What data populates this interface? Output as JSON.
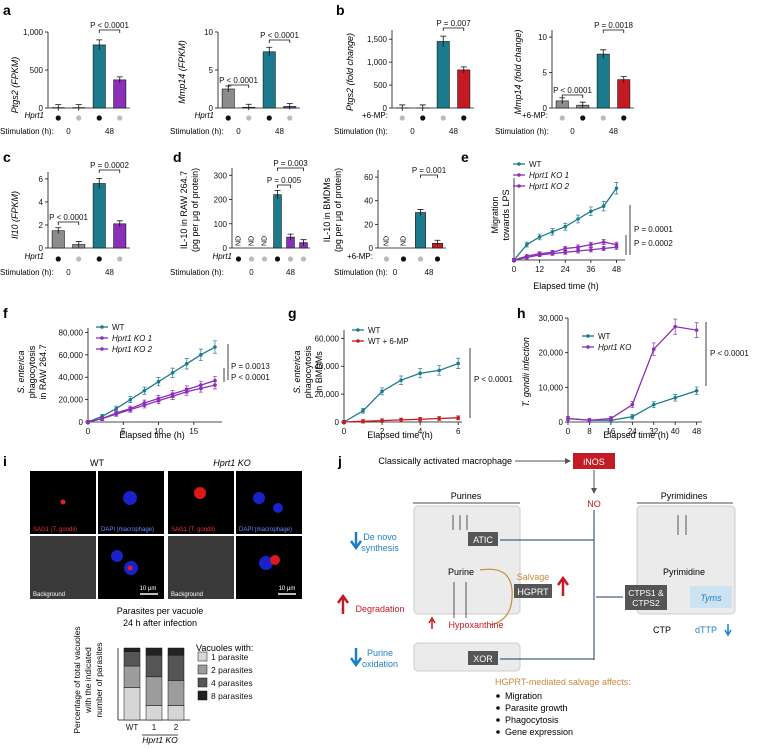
{
  "panels": {
    "a": {
      "label": "a",
      "c1": {
        "ylabel": "Ptgs2 (FPKM)",
        "yticks": [
          "1,000",
          "500",
          "0"
        ],
        "pval": "P < 0.0001"
      },
      "c2": {
        "ylabel": "Mmp14 (FPKM)",
        "yticks": [
          "10",
          "5",
          "0"
        ],
        "p1": "P < 0.0001",
        "p2": "P < 0.0001"
      },
      "row_label": "Hprt1",
      "stim_label": "Stimulation (h):",
      "t0": "0",
      "t48": "48"
    },
    "b": {
      "label": "b",
      "c1": {
        "ylabel": "Ptgs2 (fold change)",
        "yticks": [
          "1,500",
          "1,000",
          "500",
          "0"
        ],
        "pval": "P = 0.007"
      },
      "c2": {
        "ylabel": "Mmp14 (fold change)",
        "yticks": [
          "10",
          "5",
          "0"
        ],
        "p1": "P < 0.0001",
        "p2": "P = 0.0018"
      },
      "row_label": "+6-MP:",
      "stim_label": "Stimulation (h):",
      "t0": "0",
      "t48": "48"
    },
    "c": {
      "label": "c",
      "ylabel": "Il10 (FPKM)",
      "yticks": [
        "6",
        "4",
        "2",
        "0"
      ],
      "p1": "P < 0.0001",
      "p2": "P = 0.0002",
      "row_label": "Hprt1",
      "stim_label": "Stimulation (h):",
      "t0": "0",
      "t48": "48"
    },
    "d": {
      "label": "d",
      "c1": {
        "ylabel": "IL-10 in RAW 264.7",
        "ylabel2": "(pg per μg of protein)",
        "yticks": [
          "300",
          "200",
          "100",
          "0"
        ],
        "p1": "P = 0.003",
        "p2": "P = 0.005",
        "nd": "ND"
      },
      "c2": {
        "ylabel": "IL-10 in BMDMs",
        "ylabel2": "(pg per μg of protein)",
        "yticks": [
          "60",
          "40",
          "20",
          "0"
        ],
        "p1": "P = 0.001",
        "nd": "ND"
      },
      "row_label": "Hprt1",
      "row_label2": "+6-MP:",
      "stim_label": "Stimulation (h):",
      "t0": "0",
      "t48": "48"
    },
    "e": {
      "label": "e",
      "ylabel": "Migration",
      "ylabel2": "towards LPS",
      "xlabel": "Elapsed time (h)",
      "xticks": [
        "0",
        "12",
        "24",
        "36",
        "48"
      ],
      "legend": [
        "WT",
        "Hprt1 KO 1",
        "Hprt1 KO 2"
      ],
      "p1": "P = 0.0001",
      "p2": "P = 0.0002"
    },
    "f": {
      "label": "f",
      "ylabel": "S. enterica",
      "ylabel2": "phagocytosis",
      "ylabel3": "in RAW 264.7",
      "yticks": [
        "80,000",
        "60,000",
        "40,000",
        "20,000",
        "0"
      ],
      "xlabel": "Elapsed time (h)",
      "xticks": [
        "0",
        "5",
        "10",
        "15"
      ],
      "legend": [
        "WT",
        "Hprt1 KO 1",
        "Hprt1 KO 2"
      ],
      "p1": "P = 0.0013",
      "p2": "P < 0.0001"
    },
    "g": {
      "label": "g",
      "ylabel": "S. enterica",
      "ylabel2": "phagocytosis",
      "ylabel3": "in BMDMs",
      "yticks": [
        "60,000",
        "40,000",
        "20,000",
        "0"
      ],
      "xlabel": "Elapsed time (h)",
      "xticks": [
        "0",
        "2",
        "4",
        "6"
      ],
      "legend": [
        "WT",
        "WT + 6-MP"
      ],
      "p1": "P < 0.0001"
    },
    "h": {
      "label": "h",
      "ylabel": "T. gondii infection",
      "yticks": [
        "30,000",
        "20,000",
        "10,000",
        "0"
      ],
      "xlabel": "Elapsed time (h)",
      "xticks": [
        "0",
        "8",
        "16",
        "24",
        "32",
        "40",
        "48"
      ],
      "legend": [
        "WT",
        "Hprt1 KO"
      ],
      "p1": "P < 0.0001"
    },
    "i": {
      "label": "i",
      "wt": "WT",
      "ko": "Hprt1 KO",
      "sag1": "SAG1 (T. gondii)",
      "dapi": "DAPI (macrophage)",
      "bg": "Background",
      "scale": "10 μm",
      "chart_title": "Parasites per vacuole",
      "chart_subtitle": "24 h after infection",
      "ylabel1": "Percentage of total vacuoles",
      "ylabel2": "with the indicated",
      "ylabel3": "number of parasites",
      "xcat": [
        "WT",
        "1",
        "2"
      ],
      "xgroup": "Hprt1 KO",
      "legend_title": "Vacuoles with:",
      "legend": [
        "1 parasite",
        "2 parasites",
        "4 parasites",
        "8 parasites"
      ]
    },
    "j": {
      "label": "j",
      "macrophage": "Classically activated macrophage",
      "inos": "iNOS",
      "no": "NO",
      "purines": "Purines",
      "pyrimidines": "Pyrimidines",
      "denovo1": "De novo",
      "denovo2": "synthesis",
      "atic": "ATIC",
      "purine": "Purine",
      "salvage": "Salvage",
      "hgprt": "HGPRT",
      "degradation": "Degradation",
      "hypoxanthine": "Hypoxanthine",
      "oxidation1": "Purine",
      "oxidation2": "oxidation",
      "xor": "XOR",
      "pyrimidine": "Pyrimidine",
      "ctps1": "CTPS1 &",
      "ctps2": "CTPS2",
      "tyms": "Tyms",
      "ctp": "CTP",
      "dttp": "dTTP",
      "affects_title": "HGPRT-mediated salvage affects:",
      "affects": [
        "Migration",
        "Parasite growth",
        "Phagocytosis",
        "Gene expression"
      ]
    }
  },
  "colors": {
    "gray": "#8c8c8c",
    "teal": "#1b7a8c",
    "purple": "#8b2fb8",
    "red": "#c41a24",
    "blue": "#1f7fc4",
    "salvage": "#c78a3c"
  },
  "chart_data": [
    {
      "id": "a1",
      "type": "bar",
      "title": "",
      "ylabel": "Ptgs2 (FPKM)",
      "ylim": [
        0,
        1000
      ],
      "categories": [
        "0 +/+",
        "0 KO",
        "48 +/+",
        "48 KO"
      ],
      "values": [
        5,
        5,
        830,
        370
      ]
    },
    {
      "id": "a2",
      "type": "bar",
      "ylabel": "Mmp14 (FPKM)",
      "ylim": [
        0,
        10
      ],
      "categories": [
        "0 +/+",
        "0 KO",
        "48 +/+",
        "48 KO"
      ],
      "values": [
        2.5,
        0.1,
        7.4,
        0.2
      ]
    },
    {
      "id": "b1",
      "type": "bar",
      "ylabel": "Ptgs2 (fold change)",
      "ylim": [
        0,
        1500
      ],
      "categories": [
        "0 −",
        "0 +",
        "48 −",
        "48 +"
      ],
      "values": [
        1,
        1,
        1450,
        830
      ]
    },
    {
      "id": "b2",
      "type": "bar",
      "ylabel": "Mmp14 (fold change)",
      "ylim": [
        0,
        10
      ],
      "categories": [
        "0 −",
        "0 +",
        "48 −",
        "48 +"
      ],
      "values": [
        1,
        0.4,
        7.6,
        4.0
      ]
    },
    {
      "id": "c",
      "type": "bar",
      "ylabel": "Il10 (FPKM)",
      "ylim": [
        0,
        6
      ],
      "categories": [
        "0 +/+",
        "0 KO",
        "48 +/+",
        "48 KO"
      ],
      "values": [
        1.5,
        0.3,
        5.6,
        2.1
      ]
    },
    {
      "id": "d1",
      "type": "bar",
      "ylabel": "IL-10 in RAW 264.7 (pg per μg of protein)",
      "ylim": [
        0,
        300
      ],
      "categories": [
        "0 +/+",
        "0 KO1",
        "0 KO2",
        "48 +/+",
        "48 KO1",
        "48 KO2"
      ],
      "values": [
        0,
        0,
        0,
        220,
        45,
        22
      ]
    },
    {
      "id": "d2",
      "type": "bar",
      "ylabel": "IL-10 in BMDMs (pg per μg of protein)",
      "ylim": [
        0,
        60
      ],
      "categories": [
        "0 −",
        "0 +",
        "48 −",
        "48 +"
      ],
      "values": [
        0,
        0,
        30,
        4
      ]
    },
    {
      "id": "e",
      "type": "line",
      "xlabel": "Elapsed time (h)",
      "ylabel": "Migration towards LPS",
      "x": [
        0,
        6,
        12,
        18,
        24,
        30,
        36,
        42,
        48
      ],
      "series": [
        {
          "name": "WT",
          "values": [
            0,
            60,
            90,
            110,
            130,
            160,
            190,
            210,
            280
          ]
        },
        {
          "name": "Hprt1 KO 1",
          "values": [
            0,
            10,
            20,
            25,
            30,
            35,
            40,
            45,
            50
          ]
        },
        {
          "name": "Hprt1 KO 2",
          "values": [
            0,
            15,
            25,
            30,
            45,
            50,
            60,
            70,
            60
          ]
        }
      ]
    },
    {
      "id": "f",
      "type": "line",
      "xlabel": "Elapsed time (h)",
      "ylabel": "S. enterica phagocytosis in RAW 264.7",
      "ylim": [
        0,
        80000
      ],
      "x": [
        0,
        2,
        4,
        6,
        8,
        10,
        12,
        14,
        16,
        18
      ],
      "series": [
        {
          "name": "WT",
          "values": [
            0,
            5000,
            12000,
            20000,
            28000,
            36000,
            44000,
            52000,
            60000,
            67000
          ]
        },
        {
          "name": "Hprt1 KO 1",
          "values": [
            0,
            3000,
            8000,
            12000,
            17000,
            21000,
            25000,
            29000,
            33000,
            37000
          ]
        },
        {
          "name": "Hprt1 KO 2",
          "values": [
            0,
            3000,
            7000,
            11000,
            15000,
            19000,
            23000,
            27000,
            30000,
            33000
          ]
        }
      ]
    },
    {
      "id": "g",
      "type": "line",
      "xlabel": "Elapsed time (h)",
      "ylabel": "S. enterica phagocytosis in BMDMs",
      "ylim": [
        0,
        60000
      ],
      "x": [
        0,
        1,
        2,
        3,
        4,
        5,
        6
      ],
      "series": [
        {
          "name": "WT",
          "values": [
            0,
            8000,
            22000,
            30000,
            35000,
            37000,
            42000
          ]
        },
        {
          "name": "WT + 6-MP",
          "values": [
            0,
            500,
            1000,
            1500,
            2000,
            2500,
            3000
          ]
        }
      ]
    },
    {
      "id": "h",
      "type": "line",
      "xlabel": "Elapsed time (h)",
      "ylabel": "T. gondii infection",
      "ylim": [
        0,
        30000
      ],
      "x": [
        0,
        8,
        16,
        24,
        32,
        40,
        48
      ],
      "series": [
        {
          "name": "WT",
          "values": [
            1000,
            500,
            500,
            1500,
            5000,
            7000,
            9000
          ]
        },
        {
          "name": "Hprt1 KO",
          "values": [
            1000,
            500,
            1000,
            5000,
            21000,
            27500,
            26500
          ]
        }
      ]
    },
    {
      "id": "i",
      "type": "bar",
      "title": "Parasites per vacuole 24 h after infection",
      "ylabel": "Percentage of total vacuoles with the indicated number of parasites",
      "ylim": [
        0,
        100
      ],
      "categories": [
        "WT",
        "1",
        "2"
      ],
      "series": [
        {
          "name": "1 parasite",
          "values": [
            45,
            20,
            20
          ]
        },
        {
          "name": "2 parasites",
          "values": [
            30,
            40,
            35
          ]
        },
        {
          "name": "4 parasites",
          "values": [
            20,
            30,
            35
          ]
        },
        {
          "name": "8 parasites",
          "values": [
            5,
            10,
            10
          ]
        }
      ]
    }
  ]
}
